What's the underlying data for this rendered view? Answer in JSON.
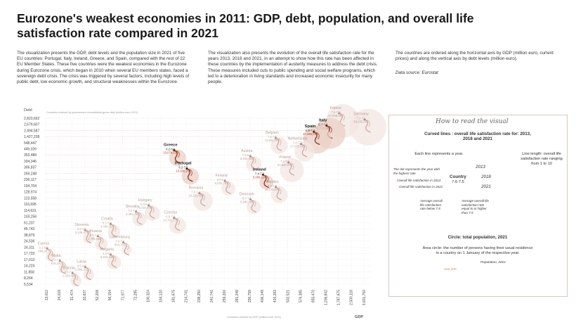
{
  "title": "Eurozone's weakest economies in 2011: GDP, debt, population, and overall life satisfaction rate compared in 2021",
  "intro": {
    "p1": "The visualization presents the GDP, debt levels and the population size  in 2021 of five EU countries: Portugal, Italy, Ireland, Greece, and Spain, compared with the rest of 22 EU Member States. These five countries were the weakest economies in the Eurozone during Eurozone crisis, which began in 2010 when several EU members states, faced a sovereign debt crisis. The crisis was triggered by several factors, including high levels of public debt, low economic growth, and structural weaknesses within the Eurozone.",
    "p2": "The visualization also presents the evolution of the overall life satisfaction rate for the years 2013, 2018 and 2021, in an attempt to show how this rate has been affected in these countries by the implementation of austerity measures to address the debt crisis. These measures included cuts to public spending and social welfare programs, which led to a deterioration in living standards and increased economic insecurity for many people.",
    "p3": "The countries are ordered along the horizontal axis by GDP (million euro, current prices) and along the vertical axis by debt levels (million euro).",
    "source": "Data source: Eurostat"
  },
  "colors": {
    "highlight": "#8b3a2a",
    "highlight_text": "#b0442e",
    "muted": "#c9a79c",
    "muted_text": "#b9a29a",
    "grid": "#e3d7d2",
    "accent_dark": "#5a1e14"
  },
  "chart_data": {
    "type": "scatter",
    "title": "",
    "ylabel": "Debt",
    "xlabel": "GDP",
    "y_note": "Countries ordered by government consolidated gross debt (million euro 2021)",
    "x_note": "Countries ordered by GDP (million euro 2021)",
    "y_ticks": [
      "5,534",
      "8,264",
      "11,858",
      "14,224",
      "17,013",
      "17,733",
      "24,311",
      "24,536",
      "38,879",
      "45,743",
      "61,237",
      "103,256",
      "114,631",
      "116,695",
      "123,558",
      "128,974",
      "194,704",
      "236,117",
      "269,248",
      "306,837",
      "334,346",
      "353,489",
      "449,026",
      "548,447",
      "1,427,238",
      "2,494,587",
      "2,679,607",
      "2,823,692"
    ],
    "x_ticks": [
      "13,012",
      "24,019",
      "31,474",
      "33,637",
      "52,208",
      "56,154",
      "71,077",
      "72,295",
      "100,324",
      "154,120",
      "181,675",
      "214,741",
      "238,250",
      "241,741",
      "259,200",
      "281,248",
      "336,759",
      "406,149",
      "426,283",
      "502,521",
      "576,385",
      "855,470",
      "1,206,842",
      "1,787,675",
      "2,500,118",
      "3,601,750"
    ],
    "countries": [
      {
        "name": "France",
        "life": "7.6-7.0",
        "population": "67,656,682",
        "highlight": false,
        "xi": 23,
        "yi": 27,
        "size": 24
      },
      {
        "name": "Germany",
        "life": "7.3-7.1",
        "population": "83,155,031",
        "highlight": false,
        "xi": 25,
        "yi": 26,
        "size": 26
      },
      {
        "name": "Italy",
        "life": "6.7-7.2",
        "population": "59,236,213",
        "highlight": true,
        "xi": 22,
        "yi": 25,
        "size": 22
      },
      {
        "name": "Spain",
        "life": "6.9-7.2",
        "population": "47,398,695",
        "highlight": true,
        "xi": 21,
        "yi": 24,
        "size": 20
      },
      {
        "name": "Belgium",
        "life": "7.6-7.5",
        "population": "11,554,767",
        "highlight": false,
        "xi": 18,
        "yi": 23,
        "size": 12
      },
      {
        "name": "Netherlands",
        "life": "7.8-7.7",
        "population": "17,475,415",
        "highlight": false,
        "xi": 20,
        "yi": 22,
        "size": 14
      },
      {
        "name": "Greece",
        "life": "6.2-6.9",
        "population": "10,678,632",
        "highlight": true,
        "xi": 10,
        "yi": 21,
        "size": 12
      },
      {
        "name": "Austria",
        "life": "7.8-8.0",
        "population": "8,932,664",
        "highlight": false,
        "xi": 16,
        "yi": 20,
        "size": 11
      },
      {
        "name": "Poland",
        "life": "7.3-7.5",
        "population": "37,840,001",
        "highlight": false,
        "xi": 19,
        "yi": 19,
        "size": 17
      },
      {
        "name": "Portugal",
        "life": "6.2-7.5",
        "population": "10,298,252",
        "highlight": true,
        "xi": 11,
        "yi": 18,
        "size": 12
      },
      {
        "name": "Ireland",
        "life": "7.4-7.3",
        "population": "5,006,324",
        "highlight": true,
        "xi": 17,
        "yi": 17,
        "size": 10
      },
      {
        "name": "Finland",
        "life": "8.0-8.1",
        "population": "5,533,793",
        "highlight": false,
        "xi": 14,
        "yi": 16,
        "size": 10
      },
      {
        "name": "Sweden",
        "life": "8.0-7.8",
        "population": "10,379,295",
        "highlight": false,
        "xi": 18,
        "yi": 15,
        "size": 12
      },
      {
        "name": "Romania",
        "life": "7.2-7.4",
        "population": "19,201,662",
        "highlight": false,
        "xi": 12,
        "yi": 14,
        "size": 14
      },
      {
        "name": "Denmark",
        "life": "8.0-7.8",
        "population": "5,840,045",
        "highlight": false,
        "xi": 16,
        "yi": 13,
        "size": 10
      },
      {
        "name": "Hungary",
        "life": "6.2-6.9",
        "population": "9,730,772",
        "highlight": false,
        "xi": 8,
        "yi": 12,
        "size": 11
      },
      {
        "name": "Slovakia",
        "life": "7.0-7.2",
        "population": "5,459,781",
        "highlight": false,
        "xi": 7,
        "yi": 11,
        "size": 10
      },
      {
        "name": "Czechia",
        "life": "6.9-7.6",
        "population": "10,701,777",
        "highlight": false,
        "xi": 10,
        "yi": 10,
        "size": 12
      },
      {
        "name": "Croatia",
        "life": "6.3-7.0",
        "population": "4,036,355",
        "highlight": false,
        "xi": 5,
        "yi": 9,
        "size": 9
      },
      {
        "name": "Slovenia",
        "life": "6.9-7.5",
        "population": "2,108,977",
        "highlight": false,
        "xi": 3,
        "yi": 8,
        "size": 8
      },
      {
        "name": "Lithuania",
        "life": "6.7-7.0",
        "population": "2,795,680",
        "highlight": false,
        "xi": 4,
        "yi": 7,
        "size": 9
      },
      {
        "name": "Luxembourg",
        "life": "7.6-7.3",
        "population": "634,730",
        "highlight": false,
        "xi": 6,
        "yi": 6,
        "size": 7
      },
      {
        "name": "Cyprus",
        "life": "6.2-6.9",
        "population": "896,007",
        "highlight": false,
        "xi": 0,
        "yi": 5,
        "size": 7
      },
      {
        "name": "Bulgaria",
        "life": "4.8-5.9",
        "population": "6,916,548",
        "highlight": false,
        "xi": 5,
        "yi": 4,
        "size": 10
      },
      {
        "name": "Malta",
        "life": "7.1-7.4",
        "population": "516,100",
        "highlight": false,
        "xi": 1,
        "yi": 3,
        "size": 7
      },
      {
        "name": "Latvia",
        "life": "6.5-6.8",
        "population": "1,893,223",
        "highlight": false,
        "xi": 3,
        "yi": 2,
        "size": 8
      },
      {
        "name": "Estonia",
        "life": "6.5-7.5",
        "population": "1,329,460",
        "highlight": false,
        "xi": 2,
        "yi": 1,
        "size": 8
      }
    ]
  },
  "legend": {
    "title": "How to read the visual",
    "curved_title": "Curved lines : overall life satisfaction rate for: 2013, 2018 and 2021",
    "each_line": "Each line represents a year.",
    "line_length": "Line length: overall life satisfaction rate ranging from 1 to 10",
    "dot_label": "The dot represents the year with the highest rate",
    "life_2013": "Overall life satisfaction in 2013",
    "life_2021": "Overall life satisfaction in 2021",
    "country_label": "Country",
    "country_range": "7.6-7.5",
    "y2013": "2013",
    "y2018": "2018",
    "y2021": "2021",
    "below": "Average overall life satisfaction rate below 7.5",
    "above": "Average overall life satisfaction rate equal to or higher than 7.5",
    "circle_title": "Circle: total population, 2021",
    "circle_desc": "Area circle: the number of persons having their usual residence in a country on 1 January of the respective year.",
    "pop_label": "Population, 2021",
    "pop_value": "516,100"
  }
}
